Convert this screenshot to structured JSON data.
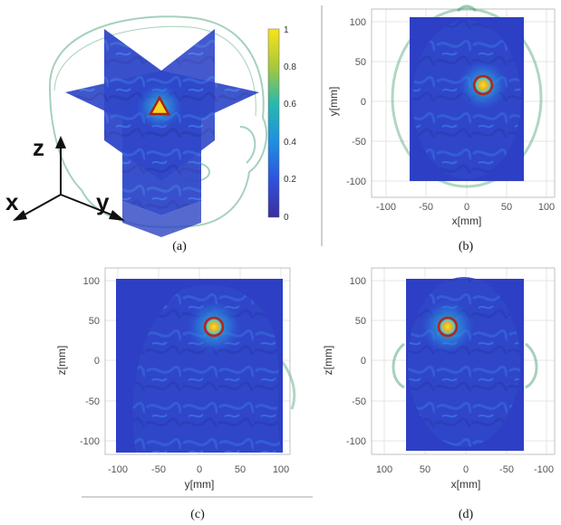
{
  "panels": {
    "a": {
      "caption": "(a)",
      "colorbar_ticks": [
        "1",
        "0.8",
        "0.6",
        "0.4",
        "0.2",
        "0"
      ],
      "axis_letters": {
        "z": "z",
        "x": "x",
        "y": "y"
      }
    },
    "b": {
      "caption": "(b)",
      "xlabel": "x[mm]",
      "ylabel": "y[mm]",
      "xticks": [
        "-100",
        "-50",
        "0",
        "50",
        "100"
      ],
      "yticks": [
        "100",
        "50",
        "0",
        "-50",
        "-100"
      ]
    },
    "c": {
      "caption": "(c)",
      "xlabel": "y[mm]",
      "ylabel": "z[mm]",
      "xticks": [
        "-100",
        "-50",
        "0",
        "50",
        "100"
      ],
      "yticks": [
        "100",
        "50",
        "0",
        "-50",
        "-100"
      ]
    },
    "d": {
      "caption": "(d)",
      "xlabel": "x[mm]",
      "ylabel": "z[mm]",
      "xticks": [
        "100",
        "50",
        "0",
        "-50",
        "-100"
      ],
      "yticks": [
        "100",
        "50",
        "0",
        "-50",
        "-100"
      ]
    }
  },
  "colors": {
    "field_low": "#2f3bc8",
    "field_mid": "#2aa3d9",
    "field_high": "#f5e31c",
    "hotspot_ring": "#c0281b",
    "head_outline": "#3a9a6a"
  }
}
